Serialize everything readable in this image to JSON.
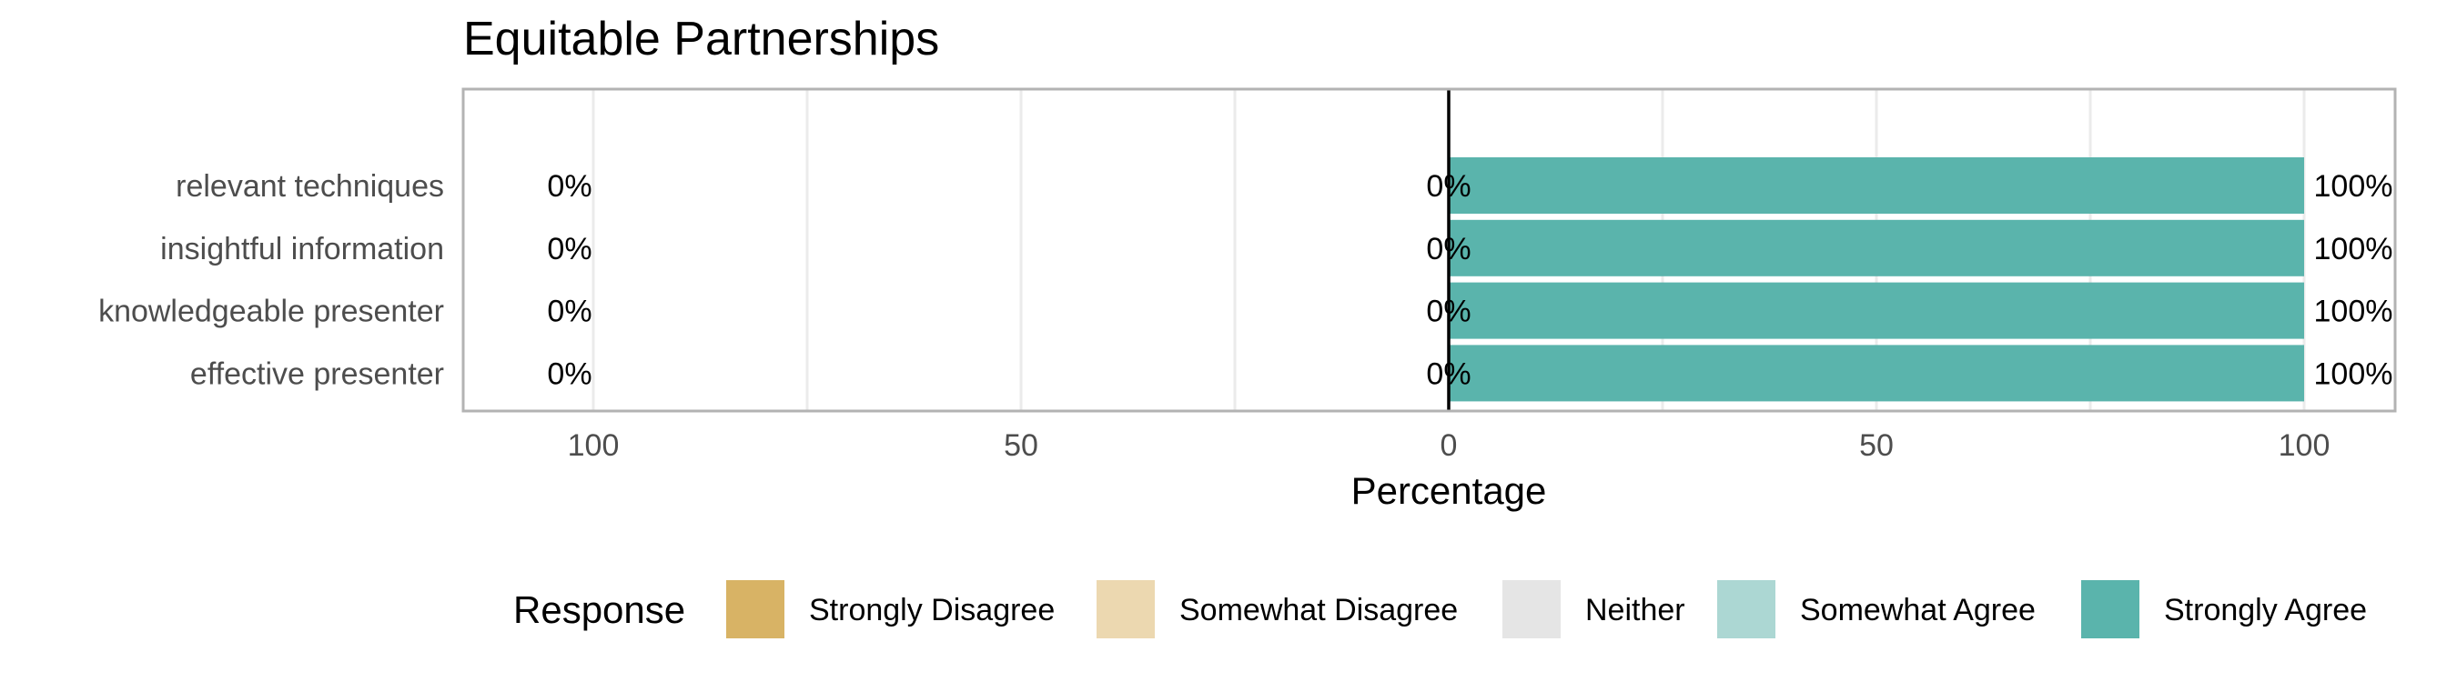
{
  "chart_data": {
    "type": "bar",
    "orientation": "horizontal",
    "stacked": "diverging",
    "title": "Equitable Partnerships",
    "xlabel": "Percentage",
    "ylabel": "",
    "xlim": [
      -100,
      100
    ],
    "x_ticks": [
      -100,
      -50,
      0,
      50,
      100
    ],
    "x_tick_labels": [
      "100",
      "50",
      "0",
      "50",
      "100"
    ],
    "grid": true,
    "categories": [
      "relevant techniques",
      "insightful information",
      "knowledgeable presenter",
      "effective presenter"
    ],
    "series": [
      {
        "name": "Strongly Disagree",
        "color": "#d8b365",
        "values": [
          0,
          0,
          0,
          0
        ]
      },
      {
        "name": "Somewhat Disagree",
        "color": "#ecd8b0",
        "values": [
          0,
          0,
          0,
          0
        ]
      },
      {
        "name": "Neither",
        "color": "#e5e5e5",
        "values": [
          0,
          0,
          0,
          0
        ]
      },
      {
        "name": "Somewhat Agree",
        "color": "#acd7d3",
        "values": [
          0,
          0,
          0,
          0
        ]
      },
      {
        "name": "Strongly Agree",
        "color": "#5ab4ac",
        "values": [
          100,
          100,
          100,
          100
        ]
      }
    ],
    "labels": {
      "left": [
        "0%",
        "0%",
        "0%",
        "0%"
      ],
      "center": [
        "0%",
        "0%",
        "0%",
        "0%"
      ],
      "right": [
        "100%",
        "100%",
        "100%",
        "100%"
      ]
    },
    "legend": {
      "title": "Response",
      "position": "bottom"
    }
  }
}
